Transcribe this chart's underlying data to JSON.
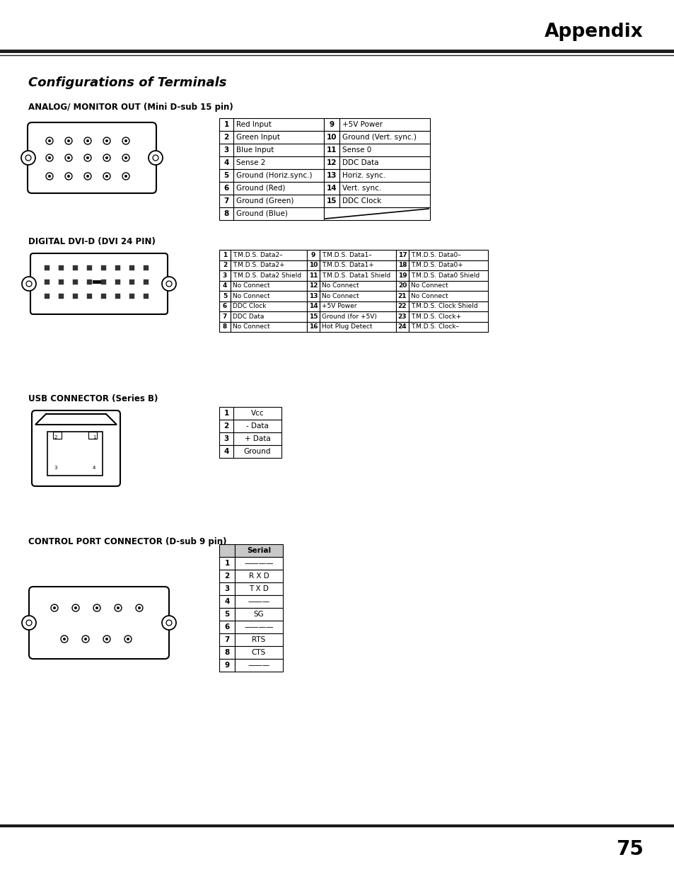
{
  "page_title": "Appendix",
  "section_title": "Configurations of Terminals",
  "bg_color": "#ffffff",
  "page_number": "75",
  "analog_section_title": "ANALOG/ MONITOR OUT (Mini D-sub 15 pin)",
  "analog_table": {
    "col1": [
      [
        "1",
        "Red Input"
      ],
      [
        "2",
        "Green Input"
      ],
      [
        "3",
        "Blue Input"
      ],
      [
        "4",
        "Sense 2"
      ],
      [
        "5",
        "Ground (Horiz.sync.)"
      ],
      [
        "6",
        "Ground (Red)"
      ],
      [
        "7",
        "Ground (Green)"
      ],
      [
        "8",
        "Ground (Blue)"
      ]
    ],
    "col2": [
      [
        "9",
        "+5V Power"
      ],
      [
        "10",
        "Ground (Vert. sync.)"
      ],
      [
        "11",
        "Sense 0"
      ],
      [
        "12",
        "DDC Data"
      ],
      [
        "13",
        "Horiz. sync."
      ],
      [
        "14",
        "Vert. sync."
      ],
      [
        "15",
        "DDC Clock"
      ],
      [
        "",
        ""
      ]
    ]
  },
  "digital_section_title": "DIGITAL DVI-D (DVI 24 PIN)",
  "digital_table": {
    "col1": [
      [
        "1",
        "T.M.D.S. Data2–"
      ],
      [
        "2",
        "T.M.D.S. Data2+"
      ],
      [
        "3",
        "T.M.D.S. Data2 Shield"
      ],
      [
        "4",
        "No Connect"
      ],
      [
        "5",
        "No Connect"
      ],
      [
        "6",
        "DDC Clock"
      ],
      [
        "7",
        "DDC Data"
      ],
      [
        "8",
        "No Connect"
      ]
    ],
    "col2": [
      [
        "9",
        "T.M.D.S. Data1–"
      ],
      [
        "10",
        "T.M.D.S. Data1+"
      ],
      [
        "11",
        "T.M.D.S. Data1 Shield"
      ],
      [
        "12",
        "No Connect"
      ],
      [
        "13",
        "No Connect"
      ],
      [
        "14",
        "+5V Power"
      ],
      [
        "15",
        "Ground (for +5V)"
      ],
      [
        "16",
        "Hot Plug Detect"
      ]
    ],
    "col3": [
      [
        "17",
        "T.M.D.S. Data0–"
      ],
      [
        "18",
        "T.M.D.S. Data0+"
      ],
      [
        "19",
        "T.M.D.S. Data0 Shield"
      ],
      [
        "20",
        "No Connect"
      ],
      [
        "21",
        "No Connect"
      ],
      [
        "22",
        "T.M.D.S. Clock Shield"
      ],
      [
        "23",
        "T.M.D.S. Clock+"
      ],
      [
        "24",
        "T.M.D.S. Clock–"
      ]
    ]
  },
  "usb_section_title": "USB CONNECTOR (Series B)",
  "usb_table": [
    [
      "1",
      "Vcc"
    ],
    [
      "2",
      "- Data"
    ],
    [
      "3",
      "+ Data"
    ],
    [
      "4",
      "Ground"
    ]
  ],
  "control_section_title": "CONTROL PORT CONNECTOR (D-sub 9 pin)",
  "control_table": {
    "header": "Serial",
    "rows": [
      [
        "1",
        "————"
      ],
      [
        "2",
        "R X D"
      ],
      [
        "3",
        "T X D"
      ],
      [
        "4",
        "———"
      ],
      [
        "5",
        "SG"
      ],
      [
        "6",
        "————"
      ],
      [
        "7",
        "RTS"
      ],
      [
        "8",
        "CTS"
      ],
      [
        "9",
        "———"
      ]
    ]
  }
}
